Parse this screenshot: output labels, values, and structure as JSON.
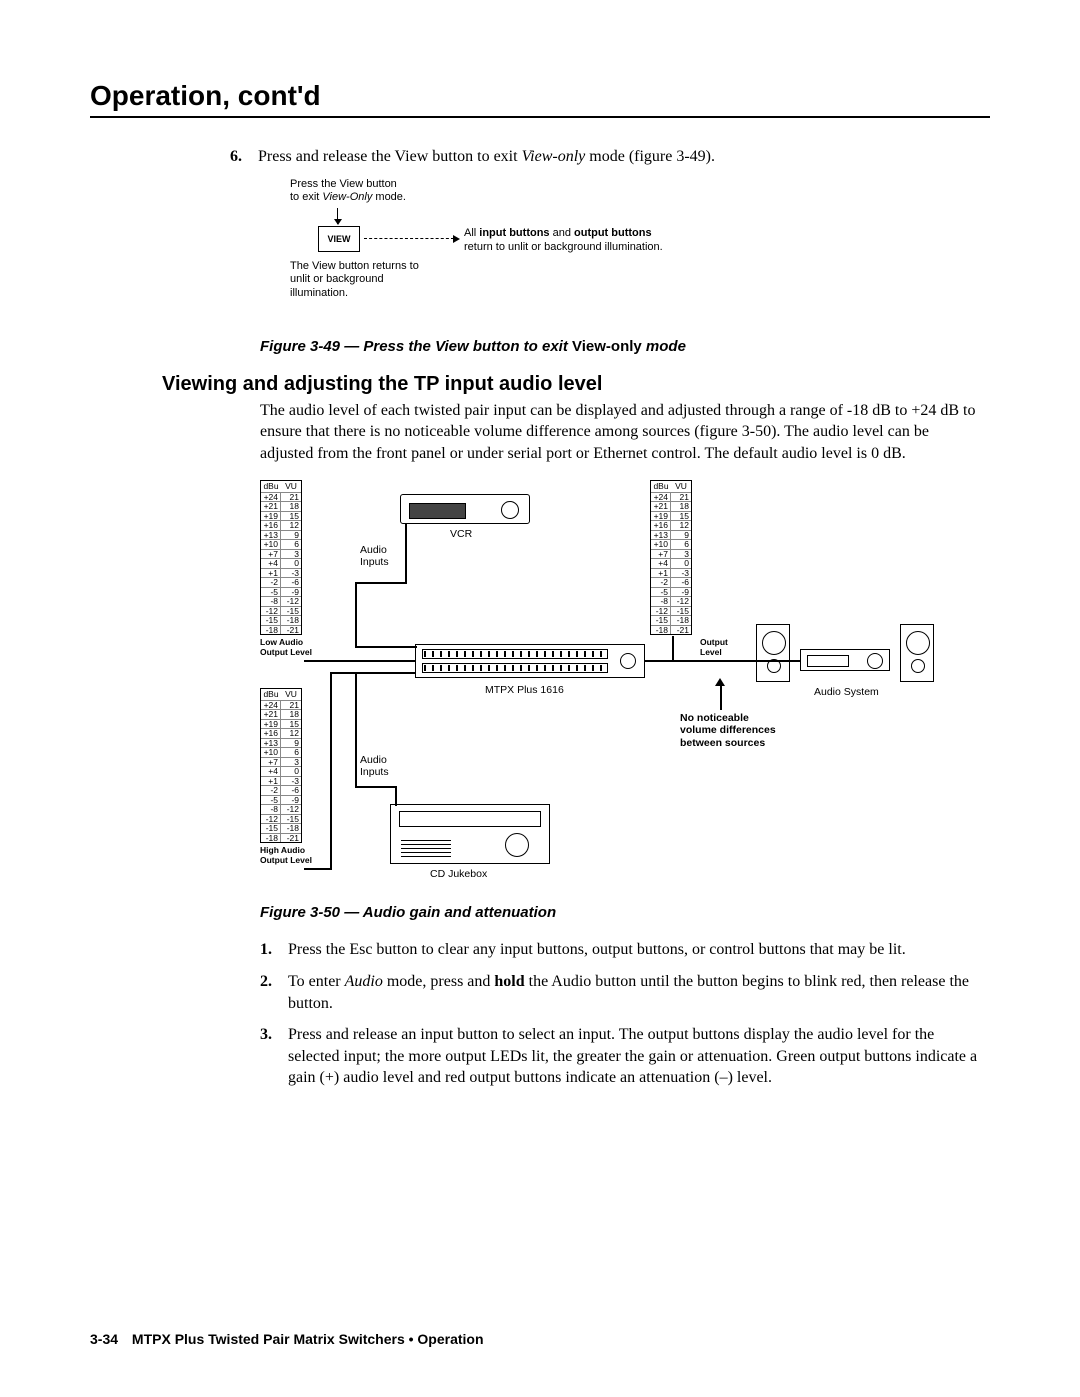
{
  "header": {
    "title": "Operation, cont'd"
  },
  "step6": {
    "num": "6",
    "text_before": "Press and release the View button to exit ",
    "italic": "View-only",
    "text_after": " mode (figure 3-49)."
  },
  "fig49": {
    "press_line1": "Press the View button",
    "press_line2_a": "to exit ",
    "press_line2_italic": "View-Only",
    "press_line2_b": " mode.",
    "view_btn": "VIEW",
    "right_line1_a": "All ",
    "right_line1_b1": "input buttons",
    "right_line1_mid": " and ",
    "right_line1_b2": "output buttons",
    "right_line2": "return to unlit or background illumination.",
    "return_line1": "The View button returns to",
    "return_line2": "unlit or background",
    "return_line3": "illumination.",
    "caption_a": "Figure 3-49 — Press the View button to exit ",
    "caption_b": "View-only",
    "caption_c": " mode"
  },
  "subhead": "Viewing and adjusting the TP input audio level",
  "intro": "The audio level of each twisted pair input can be displayed and adjusted through a range of -18 dB to +24 dB to ensure that there is no noticeable volume difference among sources (figure 3-50).  The audio level can be adjusted from the front panel or under serial port or Ethernet control.  The default audio level is 0 dB.",
  "fig50": {
    "db_header": [
      "dBu",
      "VU"
    ],
    "db_left": [
      "+24",
      "+21",
      "+19",
      "+16",
      "+13",
      "+10",
      "+7",
      "+4",
      "+1",
      "-2",
      "-5",
      "-8",
      "-12",
      "-15",
      "-18"
    ],
    "db_right": [
      "21",
      "18",
      "15",
      "12",
      "9",
      "6",
      "3",
      "0",
      "-3",
      "-6",
      "-9",
      "-12",
      "-15",
      "-18",
      "-21"
    ],
    "low_lbl1": "Low Audio",
    "low_lbl2": "Output Level",
    "high_lbl1": "High Audio",
    "high_lbl2": "Output Level",
    "out_lbl1": "Output",
    "out_lbl2": "Level",
    "vcr": "VCR",
    "audio_inputs": "Audio",
    "audio_inputs2": "Inputs",
    "mtpx": "MTPX Plus 1616",
    "cdjuke": "CD Jukebox",
    "audiosys": "Audio System",
    "novol1": "No noticeable",
    "novol2": "volume differences",
    "novol3": "between sources",
    "caption": "Figure 3-50 — Audio gain and attenuation"
  },
  "steps": [
    {
      "num": "1",
      "plain": "Press the Esc button to clear any input buttons, output buttons, or control buttons that may be lit."
    },
    {
      "num": "2",
      "a": "To enter ",
      "it": "Audio",
      "b": " mode, press and ",
      "bold": "hold",
      "c": " the Audio button until the button begins to blink red, then release the button."
    },
    {
      "num": "3",
      "plain": "Press and release an input button to select an input.  The output buttons display the audio level for the selected input; the more output LEDs lit, the greater the gain or attenuation.  Green output buttons indicate a gain (+) audio level and red output buttons indicate an attenuation (–) level."
    }
  ],
  "footer": {
    "page": "3-34",
    "title": "MTPX Plus Twisted Pair Matrix Switchers • Operation"
  }
}
